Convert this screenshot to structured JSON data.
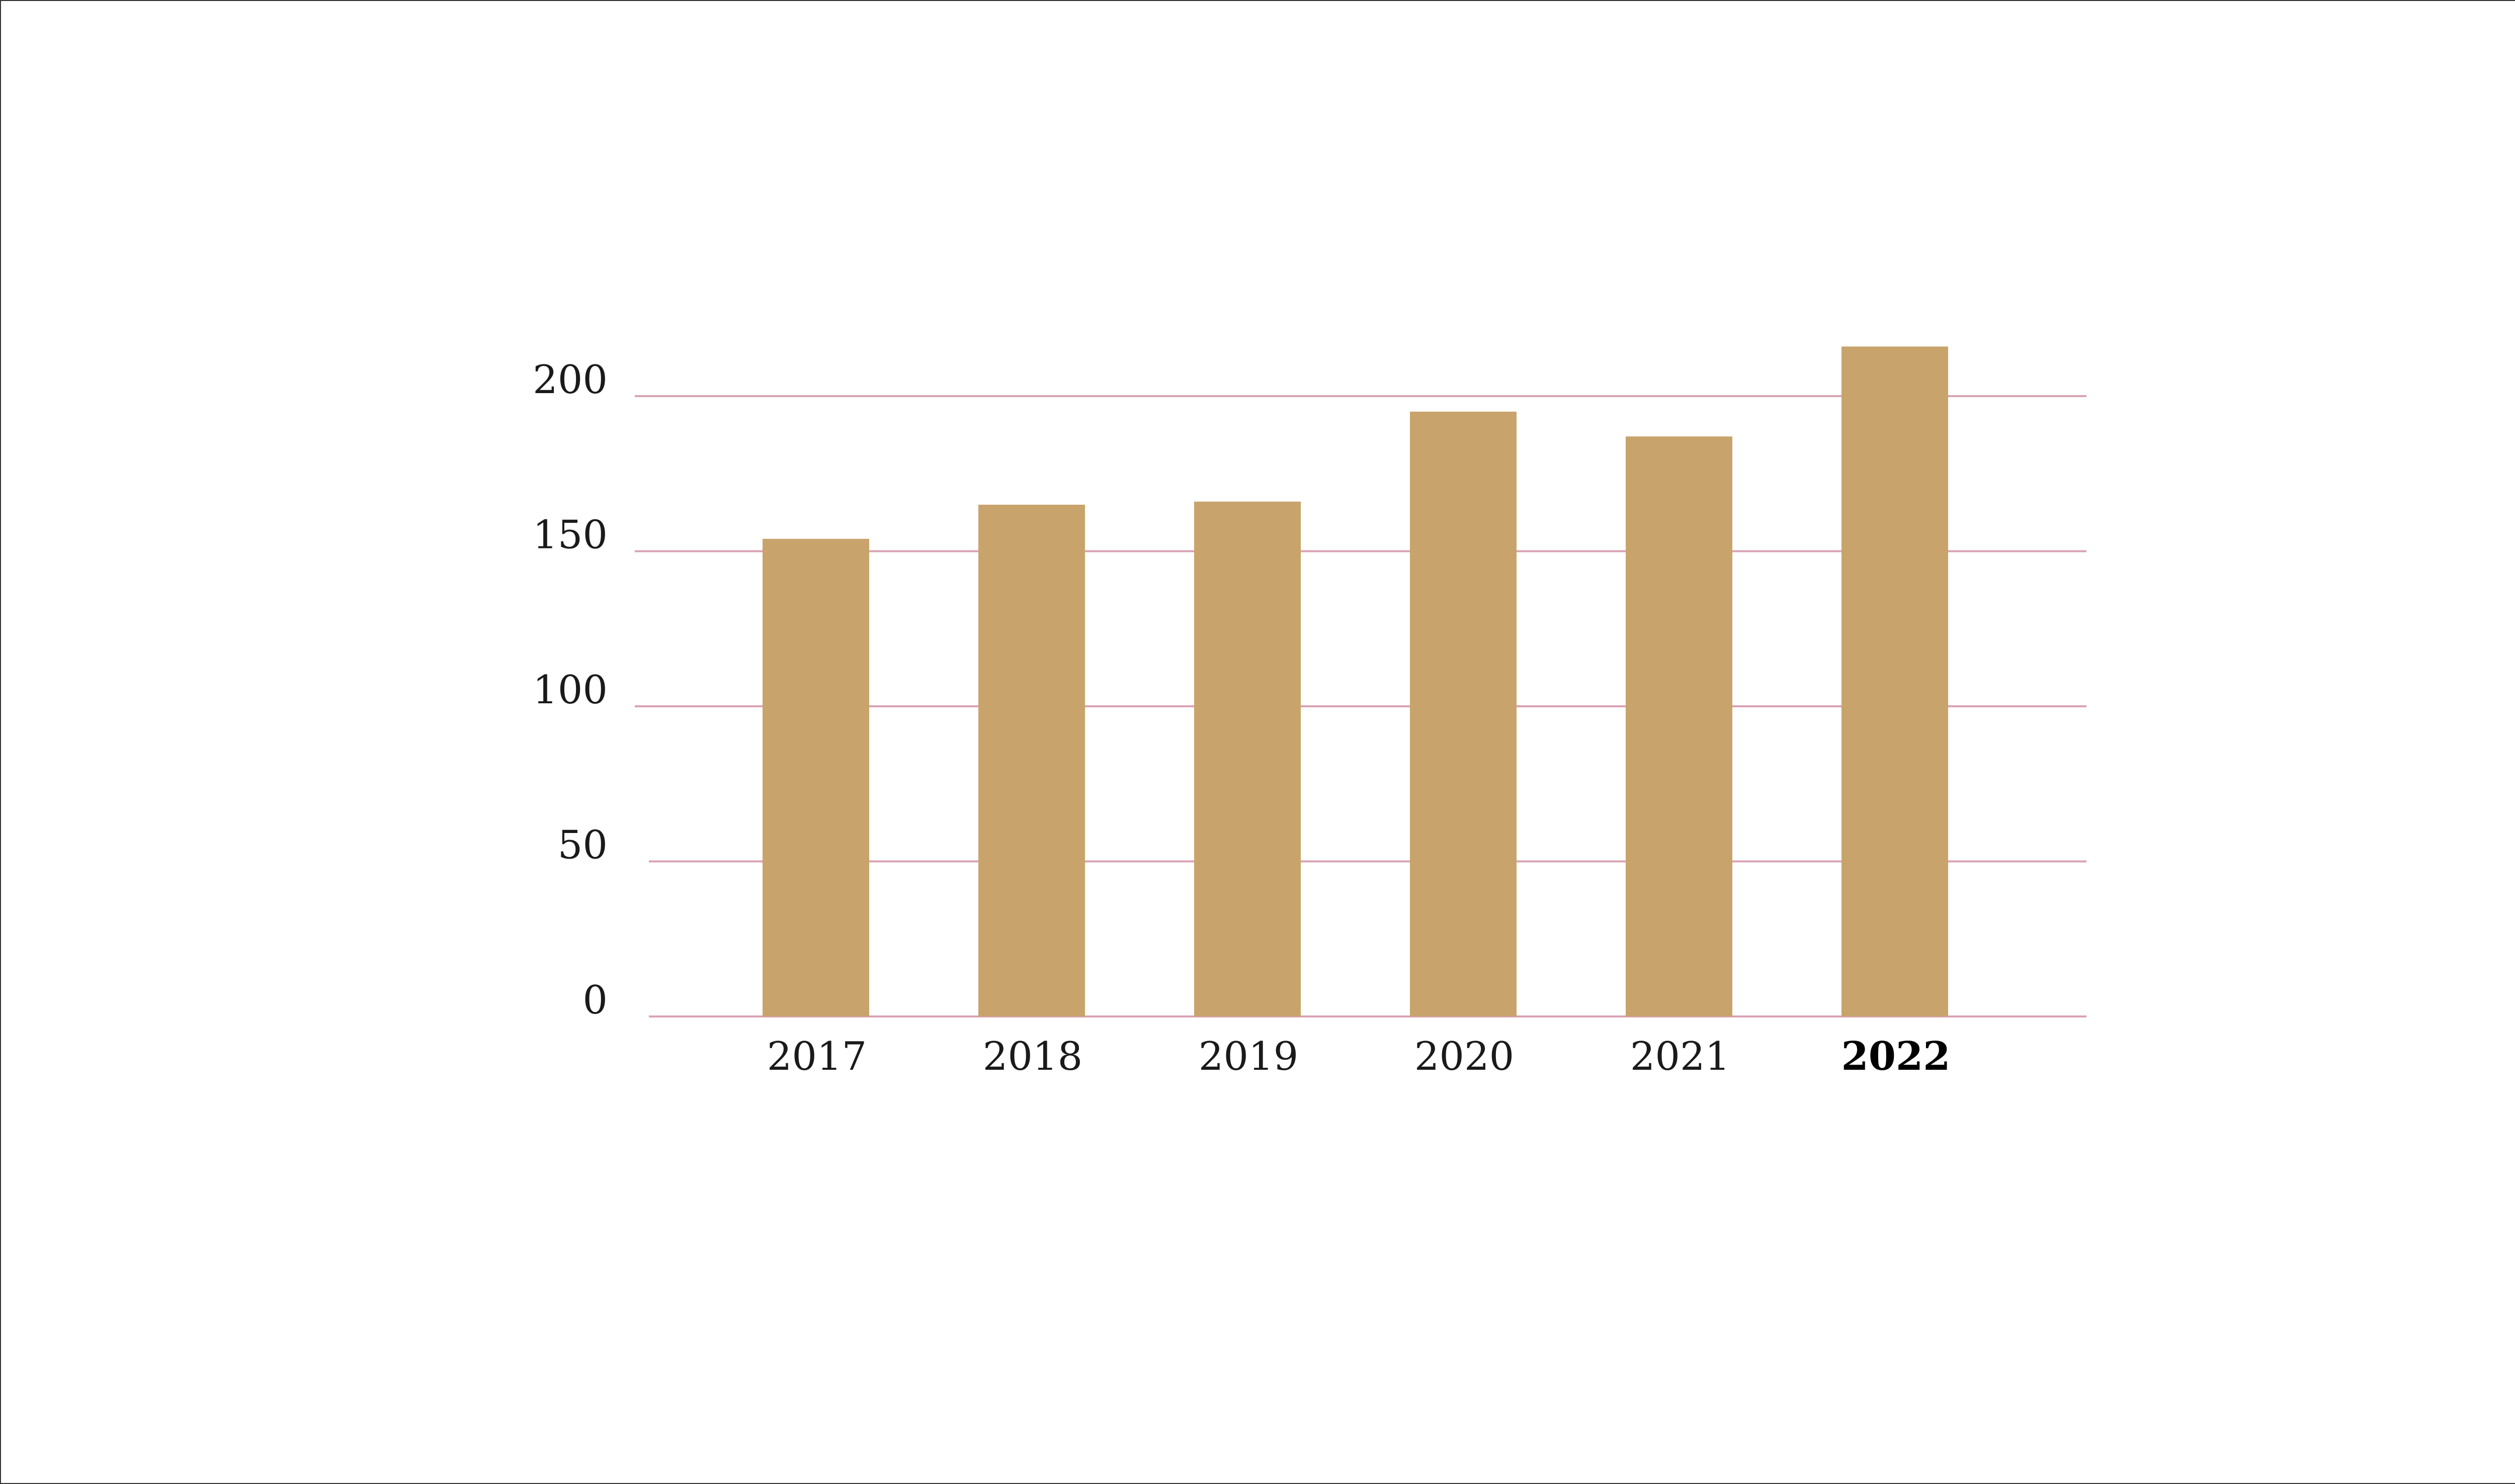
{
  "chart_data": {
    "type": "bar",
    "title": "",
    "xlabel": "",
    "ylabel": "",
    "categories": [
      "2017",
      "2018",
      "2019",
      "2020",
      "2021",
      "2022"
    ],
    "values": [
      154,
      165,
      166,
      195,
      187,
      216
    ],
    "highlight_category": "2022",
    "ylim": [
      0,
      200
    ],
    "yticks": [
      "0",
      "50",
      "100",
      "150",
      "200"
    ],
    "ytick_values": [
      0,
      50,
      100,
      150,
      200
    ],
    "grid": true,
    "legend": "none",
    "colors": {
      "bar": "#C8A46C",
      "grid": "#D9A3B4",
      "text": "#1a1a1a"
    }
  }
}
